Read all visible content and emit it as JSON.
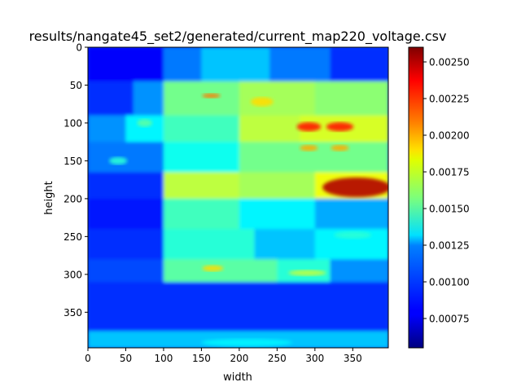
{
  "chart_data": {
    "type": "heatmap",
    "title": "results/nangate45_set2/generated/current_map220_voltage.csv",
    "xlabel": "width",
    "ylabel": "height",
    "xlim": [
      0,
      397
    ],
    "ylim": [
      397,
      0
    ],
    "xticks": [
      "0",
      "50",
      "100",
      "150",
      "200",
      "250",
      "300",
      "350"
    ],
    "yticks": [
      "0",
      "50",
      "100",
      "150",
      "200",
      "250",
      "300",
      "350"
    ],
    "colormap": "jet",
    "colorbar": {
      "vmin": 0.00055,
      "vmax": 0.0026,
      "ticks": [
        "0.00075",
        "0.00100",
        "0.00125",
        "0.00150",
        "0.00175",
        "0.00200",
        "0.00225",
        "0.00250"
      ]
    },
    "bands": [
      {
        "y": [
          0,
          45
        ],
        "segments": [
          [
            0,
            100,
            0.0008
          ],
          [
            100,
            150,
            0.00105
          ],
          [
            150,
            240,
            0.0012
          ],
          [
            240,
            320,
            0.00105
          ],
          [
            320,
            397,
            0.0009
          ]
        ]
      },
      {
        "y": [
          45,
          90
        ],
        "segments": [
          [
            0,
            60,
            0.0009
          ],
          [
            60,
            100,
            0.0011
          ],
          [
            100,
            200,
            0.00155
          ],
          [
            200,
            300,
            0.00165
          ],
          [
            300,
            397,
            0.0016
          ]
        ]
      },
      {
        "y": [
          90,
          125
        ],
        "segments": [
          [
            0,
            50,
            0.0011
          ],
          [
            50,
            100,
            0.0013
          ],
          [
            100,
            200,
            0.00145
          ],
          [
            200,
            280,
            0.0017
          ],
          [
            280,
            397,
            0.00175
          ]
        ]
      },
      {
        "y": [
          125,
          165
        ],
        "segments": [
          [
            0,
            100,
            0.00105
          ],
          [
            100,
            200,
            0.00135
          ],
          [
            200,
            397,
            0.00155
          ]
        ]
      },
      {
        "y": [
          165,
          200
        ],
        "segments": [
          [
            0,
            100,
            0.0009
          ],
          [
            100,
            200,
            0.0017
          ],
          [
            200,
            300,
            0.00165
          ],
          [
            300,
            397,
            0.0018
          ]
        ]
      },
      {
        "y": [
          200,
          240
        ],
        "segments": [
          [
            0,
            100,
            0.00085
          ],
          [
            100,
            200,
            0.00145
          ],
          [
            200,
            300,
            0.0013
          ],
          [
            300,
            397,
            0.00115
          ]
        ]
      },
      {
        "y": [
          240,
          280
        ],
        "segments": [
          [
            0,
            100,
            0.0009
          ],
          [
            100,
            220,
            0.0014
          ],
          [
            220,
            300,
            0.0012
          ],
          [
            300,
            397,
            0.0013
          ]
        ]
      },
      {
        "y": [
          280,
          310
        ],
        "segments": [
          [
            0,
            100,
            0.00095
          ],
          [
            100,
            250,
            0.0015
          ],
          [
            250,
            320,
            0.0014
          ],
          [
            320,
            397,
            0.0011
          ]
        ]
      },
      {
        "y": [
          310,
          375
        ],
        "segments": [
          [
            0,
            397,
            0.0009
          ]
        ]
      },
      {
        "y": [
          375,
          397
        ],
        "segments": [
          [
            0,
            397,
            0.0012
          ]
        ]
      }
    ],
    "hotspots": [
      {
        "cx": 292,
        "cy": 105,
        "rx": 16,
        "ry": 6,
        "value": 0.0023
      },
      {
        "cx": 333,
        "cy": 105,
        "rx": 18,
        "ry": 6,
        "value": 0.0023
      },
      {
        "cx": 292,
        "cy": 133,
        "rx": 12,
        "ry": 4,
        "value": 0.002
      },
      {
        "cx": 333,
        "cy": 133,
        "rx": 12,
        "ry": 4,
        "value": 0.002
      },
      {
        "cx": 355,
        "cy": 185,
        "rx": 45,
        "ry": 13,
        "value": 0.0025
      },
      {
        "cx": 163,
        "cy": 64,
        "rx": 12,
        "ry": 3,
        "value": 0.0021
      },
      {
        "cx": 230,
        "cy": 72,
        "rx": 15,
        "ry": 6,
        "value": 0.0019
      },
      {
        "cx": 165,
        "cy": 292,
        "rx": 14,
        "ry": 4,
        "value": 0.0019
      },
      {
        "cx": 290,
        "cy": 298,
        "rx": 25,
        "ry": 4,
        "value": 0.0017
      },
      {
        "cx": 40,
        "cy": 150,
        "rx": 12,
        "ry": 5,
        "value": 0.0014
      },
      {
        "cx": 75,
        "cy": 100,
        "rx": 10,
        "ry": 5,
        "value": 0.0015
      },
      {
        "cx": 350,
        "cy": 248,
        "rx": 25,
        "ry": 5,
        "value": 0.0014
      },
      {
        "cx": 210,
        "cy": 390,
        "rx": 60,
        "ry": 5,
        "value": 0.0013
      }
    ]
  }
}
